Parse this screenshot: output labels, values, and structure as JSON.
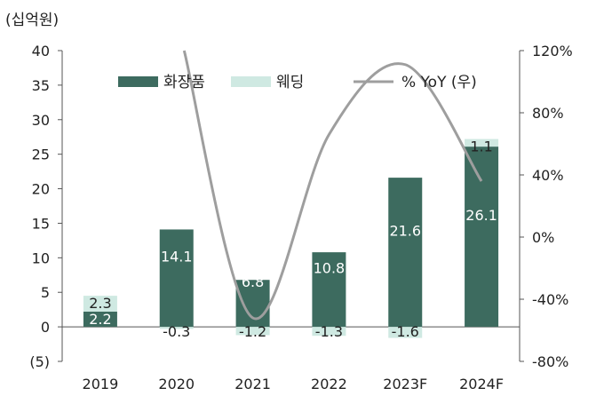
{
  "chart_data": {
    "type": "bar",
    "unit_label": "(십억원)",
    "categories": [
      "2019",
      "2020",
      "2021",
      "2022",
      "2023F",
      "2024F"
    ],
    "y_left": {
      "min": -5,
      "max": 40,
      "ticks": [
        -5,
        0,
        5,
        10,
        15,
        20,
        25,
        30,
        35,
        40
      ],
      "tick_labels": [
        "(5)",
        "0",
        "5",
        "10",
        "15",
        "20",
        "25",
        "30",
        "35",
        "40"
      ]
    },
    "y_right": {
      "min": -80,
      "max": 120,
      "ticks": [
        -80,
        -40,
        0,
        40,
        80,
        120
      ],
      "tick_labels": [
        "-80%",
        "-40%",
        "0%",
        "40%",
        "80%",
        "120%"
      ]
    },
    "series": [
      {
        "name": "화장품",
        "type": "bar",
        "color": "#3d6b5f",
        "values": [
          2.2,
          14.1,
          6.8,
          10.8,
          21.6,
          26.1
        ],
        "labels": [
          "2.2",
          "14.1",
          "6.8",
          "10.8",
          "21.6",
          "26.1"
        ]
      },
      {
        "name": "웨딩",
        "type": "bar",
        "color": "#cfe9e2",
        "values": [
          2.3,
          -0.3,
          -1.2,
          -1.3,
          -1.6,
          1.1
        ],
        "labels": [
          "2.3",
          "-0.3",
          "-1.2",
          "-1.3",
          "-1.6",
          "1.1"
        ]
      },
      {
        "name": "% YoY (우)",
        "type": "line",
        "axis": "right",
        "color": "#9e9e9e",
        "points": [
          {
            "x": 1.1,
            "y": 120
          },
          {
            "x": 2,
            "y": -52
          },
          {
            "x": 3,
            "y": 66
          },
          {
            "x": 4,
            "y": 111
          },
          {
            "x": 5,
            "y": 36
          }
        ]
      }
    ],
    "legend_position": "top"
  }
}
